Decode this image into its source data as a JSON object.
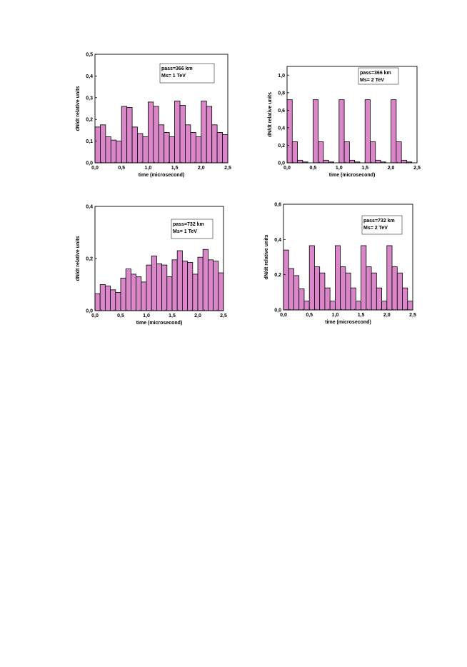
{
  "chart_data": [
    {
      "type": "bar",
      "title": "",
      "xlabel": "time (microsecond)",
      "ylabel": "dN/dt relative units",
      "xlim": [
        0,
        2.5
      ],
      "ylim": [
        0,
        0.5
      ],
      "xticks": [
        "0,0",
        "0,5",
        "1,0",
        "1,5",
        "2,0",
        "2,5"
      ],
      "yticks": [
        "0,0",
        "0,1",
        "0,2",
        "0,3",
        "0,4",
        "0,5"
      ],
      "legend": [
        "pass=366 km",
        "Ms= 1 TeV"
      ],
      "legend_position": "top-right",
      "bin_width": 0.1,
      "x": [
        0.0,
        0.1,
        0.2,
        0.3,
        0.4,
        0.5,
        0.6,
        0.7,
        0.8,
        0.9,
        1.0,
        1.1,
        1.2,
        1.3,
        1.4,
        1.5,
        1.6,
        1.7,
        1.8,
        1.9,
        2.0,
        2.1,
        2.2,
        2.3,
        2.4
      ],
      "values": [
        0.165,
        0.175,
        0.12,
        0.105,
        0.1,
        0.26,
        0.255,
        0.165,
        0.135,
        0.12,
        0.28,
        0.26,
        0.175,
        0.14,
        0.12,
        0.285,
        0.265,
        0.175,
        0.14,
        0.12,
        0.285,
        0.26,
        0.175,
        0.14,
        0.13
      ],
      "bar_color": "#d987c8"
    },
    {
      "type": "bar",
      "title": "",
      "xlabel": "time (microsecond)",
      "ylabel": "dN/dt relative units",
      "xlim": [
        0,
        2.5
      ],
      "ylim": [
        0,
        1.1
      ],
      "xticks": [
        "0,0",
        "0,5",
        "1,0",
        "1,5",
        "2,0",
        "2,5"
      ],
      "yticks": [
        "0,0",
        "0,2",
        "0,4",
        "0,6",
        "0,8",
        "1,0"
      ],
      "legend": [
        "pass=366 km",
        "Ms= 2 TeV"
      ],
      "legend_position": "top-right",
      "bin_width": 0.1,
      "x": [
        0.0,
        0.1,
        0.2,
        0.3,
        0.4,
        0.5,
        0.6,
        0.7,
        0.8,
        0.9,
        1.0,
        1.1,
        1.2,
        1.3,
        1.4,
        1.5,
        1.6,
        1.7,
        1.8,
        1.9,
        2.0,
        2.1,
        2.2,
        2.3,
        2.4
      ],
      "values": [
        0.72,
        0.24,
        0.03,
        0.01,
        0.0,
        0.72,
        0.24,
        0.03,
        0.01,
        0.0,
        0.72,
        0.24,
        0.03,
        0.01,
        0.0,
        0.72,
        0.24,
        0.03,
        0.01,
        0.0,
        0.72,
        0.24,
        0.03,
        0.01,
        0.0
      ],
      "bar_color": "#d987c8"
    },
    {
      "type": "bar",
      "title": "",
      "xlabel": "time (microsecond)",
      "ylabel": "dN/dt relative units",
      "xlim": [
        0,
        2.5
      ],
      "ylim": [
        0,
        0.4
      ],
      "xticks": [
        "0,0",
        "0,5",
        "1,0",
        "1,5",
        "2,0",
        "2,5"
      ],
      "yticks": [
        "0,0",
        "0,2",
        "0,4"
      ],
      "legend": [
        "pass=732 km",
        "Ms= 1 TeV"
      ],
      "legend_position": "top-right",
      "bin_width": 0.1,
      "x": [
        0.0,
        0.1,
        0.2,
        0.3,
        0.4,
        0.5,
        0.6,
        0.7,
        0.8,
        0.9,
        1.0,
        1.1,
        1.2,
        1.3,
        1.4,
        1.5,
        1.6,
        1.7,
        1.8,
        1.9,
        2.0,
        2.1,
        2.2,
        2.3,
        2.4
      ],
      "values": [
        0.065,
        0.1,
        0.095,
        0.08,
        0.07,
        0.125,
        0.16,
        0.14,
        0.13,
        0.11,
        0.175,
        0.21,
        0.18,
        0.175,
        0.13,
        0.195,
        0.23,
        0.19,
        0.185,
        0.14,
        0.205,
        0.235,
        0.195,
        0.19,
        0.145
      ],
      "bar_color": "#d987c8"
    },
    {
      "type": "bar",
      "title": "",
      "xlabel": "time (microsecond)",
      "ylabel": "dN/dt relative units",
      "xlim": [
        0,
        2.5
      ],
      "ylim": [
        0,
        0.6
      ],
      "xticks": [
        "0,0",
        "0,5",
        "1,0",
        "1,5",
        "2,0",
        "2,5"
      ],
      "yticks": [
        "0,0",
        "0,2",
        "0,4",
        "0,6"
      ],
      "legend": [
        "pass=732 km",
        "Ms= 2 TeV"
      ],
      "legend_position": "top-right",
      "bin_width": 0.1,
      "x": [
        0.0,
        0.1,
        0.2,
        0.3,
        0.4,
        0.5,
        0.6,
        0.7,
        0.8,
        0.9,
        1.0,
        1.1,
        1.2,
        1.3,
        1.4,
        1.5,
        1.6,
        1.7,
        1.8,
        1.9,
        2.0,
        2.1,
        2.2,
        2.3,
        2.4
      ],
      "values": [
        0.34,
        0.235,
        0.195,
        0.12,
        0.05,
        0.365,
        0.245,
        0.21,
        0.125,
        0.05,
        0.365,
        0.245,
        0.21,
        0.125,
        0.05,
        0.365,
        0.245,
        0.21,
        0.125,
        0.05,
        0.365,
        0.245,
        0.21,
        0.125,
        0.05
      ],
      "bar_color": "#d987c8"
    }
  ]
}
